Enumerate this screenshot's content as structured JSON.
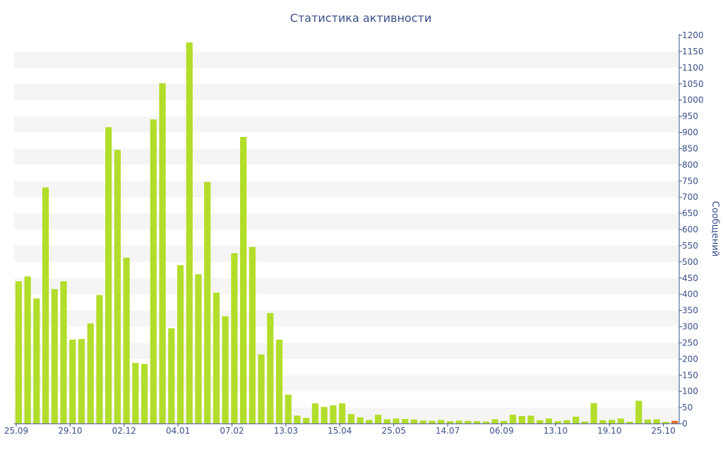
{
  "chart_data": {
    "type": "bar",
    "title": "Статистика активности",
    "xlabel": "",
    "ylabel": "Сообщений",
    "ylim": [
      0,
      1200
    ],
    "y_ticks": [
      0,
      50,
      100,
      150,
      200,
      250,
      300,
      350,
      400,
      450,
      500,
      550,
      600,
      650,
      700,
      750,
      800,
      850,
      900,
      950,
      1000,
      1050,
      1100,
      1150,
      1200
    ],
    "y_axis_side": "right",
    "x_tick_labels": [
      {
        "label": "25.09",
        "index": 0
      },
      {
        "label": "29.10",
        "index": 6
      },
      {
        "label": "02.12",
        "index": 12
      },
      {
        "label": "04.01",
        "index": 18
      },
      {
        "label": "07.02",
        "index": 24
      },
      {
        "label": "13.03",
        "index": 30
      },
      {
        "label": "15.04",
        "index": 36
      },
      {
        "label": "25.05",
        "index": 42
      },
      {
        "label": "14.07",
        "index": 48
      },
      {
        "label": "06.09",
        "index": 54
      },
      {
        "label": "13.10",
        "index": 60
      },
      {
        "label": "19.10",
        "index": 66
      },
      {
        "label": "25.10",
        "index": 72
      }
    ],
    "values": [
      440,
      455,
      387,
      730,
      416,
      440,
      260,
      262,
      310,
      398,
      916,
      846,
      513,
      188,
      185,
      940,
      1052,
      295,
      490,
      1178,
      462,
      747,
      405,
      332,
      527,
      886,
      546,
      214,
      342,
      260,
      90,
      25,
      18,
      63,
      52,
      57,
      63,
      30,
      20,
      12,
      28,
      14,
      16,
      15,
      13,
      10,
      9,
      12,
      8,
      10,
      9,
      8,
      7,
      14,
      9,
      28,
      24,
      25,
      11,
      16,
      8,
      11,
      22,
      7,
      64,
      11,
      12,
      16,
      6,
      71,
      13,
      14,
      6,
      9
    ],
    "highlight_last": true,
    "colors": {
      "bar": "#b2dd2a",
      "bar_last": "#e8702a",
      "band": "#f5f5f5",
      "axis": "#3a4f8a",
      "text": "#3a4f8a"
    },
    "grid": "alternating horizontal bands",
    "legend": "none"
  }
}
